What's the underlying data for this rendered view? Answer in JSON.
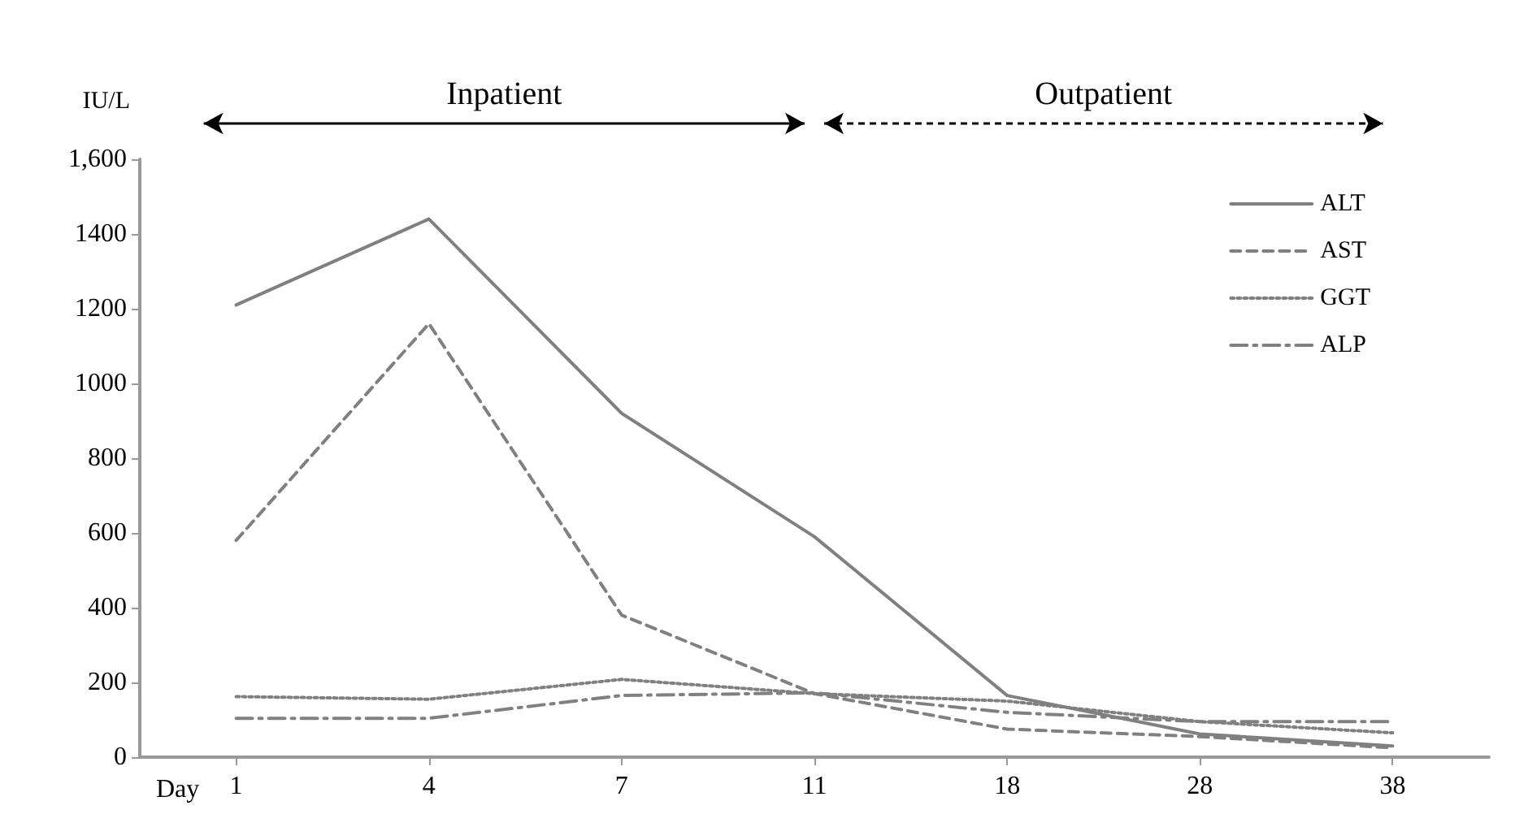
{
  "chart_data": {
    "type": "line",
    "xlabel": "Day",
    "ylabel": "IU/L",
    "categories": [
      "1",
      "4",
      "7",
      "11",
      "18",
      "28",
      "38"
    ],
    "series": [
      {
        "name": "ALT",
        "color": "#808080",
        "line_style": "solid",
        "values": [
          1210,
          1440,
          920,
          590,
          165,
          62,
          30
        ]
      },
      {
        "name": "AST",
        "color": "#808080",
        "line_style": "dashed",
        "values": [
          580,
          1160,
          380,
          170,
          75,
          55,
          25
        ]
      },
      {
        "name": "GGT",
        "color": "#808080",
        "line_style": "dotted",
        "values": [
          162,
          155,
          208,
          170,
          150,
          95,
          65
        ]
      },
      {
        "name": "ALP",
        "color": "#808080",
        "line_style": "dashdot",
        "values": [
          104,
          104,
          165,
          172,
          120,
          95,
          95
        ]
      }
    ],
    "ylim": [
      0,
      1600
    ],
    "yticks": [
      0,
      200,
      400,
      600,
      800,
      1000,
      1200,
      1400,
      {
        "value": 1600,
        "label": "1,600"
      }
    ],
    "annotations": [
      "Inpatient",
      "Outpatient"
    ],
    "grid": false,
    "legend": "top right",
    "marker": "none"
  }
}
